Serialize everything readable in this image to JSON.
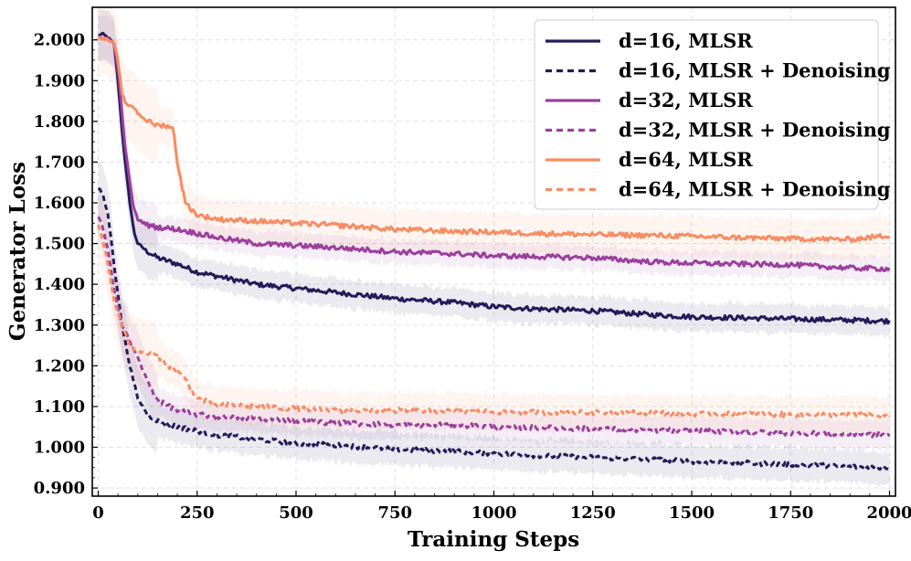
{
  "chart_data": {
    "type": "line",
    "title": "",
    "xlabel": "Training Steps",
    "ylabel": "Generator Loss",
    "xlim": [
      -15,
      2015
    ],
    "ylim": [
      0.88,
      2.08
    ],
    "xticks": [
      0,
      250,
      500,
      750,
      1000,
      1250,
      1500,
      1750,
      2000
    ],
    "xtick_labels": [
      "0",
      "250",
      "500",
      "750",
      "1000",
      "1250",
      "1500",
      "1750",
      "2000"
    ],
    "yticks": [
      0.9,
      1.0,
      1.1,
      1.2,
      1.3,
      1.4,
      1.5,
      1.6,
      1.7,
      1.8,
      1.9,
      2.0
    ],
    "ytick_labels": [
      "0.900",
      "1.000",
      "1.100",
      "1.200",
      "1.300",
      "1.400",
      "1.500",
      "1.600",
      "1.700",
      "1.800",
      "1.900",
      "2.000"
    ],
    "grid": true,
    "legend_position": "top-right",
    "series": [
      {
        "name": "d=16, MLSR",
        "color": "#231b5a",
        "style": "solid",
        "band": 0.035,
        "x": [
          0,
          10,
          25,
          40,
          50,
          60,
          70,
          80,
          90,
          100,
          125,
          150,
          200,
          250,
          300,
          400,
          500,
          600,
          750,
          900,
          1000,
          1100,
          1250,
          1400,
          1500,
          1600,
          1750,
          1900,
          2000
        ],
        "y": [
          2.01,
          2.015,
          2.005,
          1.99,
          1.9,
          1.78,
          1.68,
          1.6,
          1.53,
          1.5,
          1.48,
          1.465,
          1.45,
          1.43,
          1.42,
          1.4,
          1.39,
          1.38,
          1.365,
          1.355,
          1.345,
          1.34,
          1.335,
          1.325,
          1.32,
          1.318,
          1.315,
          1.312,
          1.31
        ]
      },
      {
        "name": "d=16, MLSR + Denoising",
        "color": "#231b5a",
        "style": "dashed",
        "band": 0.04,
        "x": [
          0,
          10,
          25,
          40,
          60,
          80,
          100,
          125,
          150,
          200,
          250,
          300,
          400,
          500,
          600,
          750,
          900,
          1000,
          1100,
          1250,
          1400,
          1500,
          1600,
          1750,
          1900,
          2000
        ],
        "y": [
          1.635,
          1.625,
          1.57,
          1.45,
          1.3,
          1.2,
          1.12,
          1.08,
          1.065,
          1.05,
          1.04,
          1.03,
          1.02,
          1.01,
          1.005,
          0.995,
          0.99,
          0.985,
          0.98,
          0.975,
          0.97,
          0.965,
          0.962,
          0.958,
          0.952,
          0.95
        ]
      },
      {
        "name": "d=32, MLSR",
        "color": "#9b3f9d",
        "style": "solid",
        "band": 0.03,
        "x": [
          0,
          10,
          25,
          40,
          50,
          60,
          70,
          80,
          90,
          100,
          125,
          150,
          200,
          250,
          300,
          400,
          500,
          600,
          750,
          900,
          1000,
          1100,
          1250,
          1400,
          1500,
          1600,
          1750,
          1900,
          2000
        ],
        "y": [
          2.005,
          2.005,
          2.003,
          1.99,
          1.93,
          1.82,
          1.72,
          1.65,
          1.585,
          1.56,
          1.545,
          1.54,
          1.535,
          1.525,
          1.515,
          1.5,
          1.495,
          1.49,
          1.48,
          1.475,
          1.47,
          1.468,
          1.465,
          1.455,
          1.452,
          1.45,
          1.448,
          1.44,
          1.438
        ]
      },
      {
        "name": "d=32, MLSR + Denoising",
        "color": "#9b3f9d",
        "style": "dashed",
        "band": 0.035,
        "x": [
          0,
          10,
          25,
          40,
          60,
          80,
          100,
          125,
          150,
          200,
          250,
          300,
          400,
          500,
          600,
          750,
          900,
          1000,
          1100,
          1250,
          1400,
          1500,
          1600,
          1750,
          1900,
          2000
        ],
        "y": [
          1.565,
          1.545,
          1.48,
          1.39,
          1.3,
          1.26,
          1.22,
          1.16,
          1.115,
          1.09,
          1.08,
          1.075,
          1.07,
          1.065,
          1.06,
          1.055,
          1.055,
          1.05,
          1.048,
          1.045,
          1.042,
          1.04,
          1.038,
          1.035,
          1.032,
          1.03
        ]
      },
      {
        "name": "d=64, MLSR",
        "color": "#f78c63",
        "style": "solid",
        "band": 0.05,
        "x": [
          0,
          10,
          25,
          40,
          50,
          60,
          70,
          80,
          90,
          100,
          125,
          150,
          175,
          190,
          200,
          220,
          250,
          300,
          400,
          500,
          600,
          750,
          900,
          1000,
          1100,
          1250,
          1400,
          1500,
          1600,
          1750,
          1900,
          2000
        ],
        "y": [
          2.005,
          2.003,
          2.0,
          1.99,
          1.95,
          1.87,
          1.84,
          1.84,
          1.835,
          1.82,
          1.8,
          1.79,
          1.79,
          1.78,
          1.7,
          1.6,
          1.57,
          1.56,
          1.555,
          1.55,
          1.545,
          1.535,
          1.53,
          1.528,
          1.525,
          1.522,
          1.52,
          1.518,
          1.515,
          1.512,
          1.51,
          1.52
        ]
      },
      {
        "name": "d=64, MLSR + Denoising",
        "color": "#f78c63",
        "style": "dashed",
        "band": 0.045,
        "x": [
          0,
          10,
          25,
          40,
          60,
          80,
          100,
          125,
          150,
          175,
          200,
          225,
          250,
          300,
          400,
          500,
          600,
          750,
          900,
          1000,
          1100,
          1250,
          1400,
          1500,
          1600,
          1750,
          1900,
          2000
        ],
        "y": [
          1.545,
          1.515,
          1.45,
          1.36,
          1.3,
          1.25,
          1.235,
          1.23,
          1.225,
          1.2,
          1.19,
          1.16,
          1.12,
          1.105,
          1.1,
          1.095,
          1.09,
          1.09,
          1.088,
          1.087,
          1.086,
          1.085,
          1.085,
          1.082,
          1.082,
          1.08,
          1.08,
          1.078
        ]
      }
    ]
  }
}
